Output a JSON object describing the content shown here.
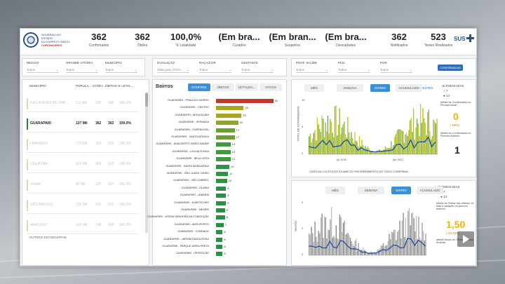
{
  "logo": {
    "line1": "GOVERNO DO ESTADO",
    "line2": "DO ESPÍRITO SANTO",
    "line3": "CORONAVÍRUS"
  },
  "kpis": [
    {
      "value": "362",
      "label": "Confirmados"
    },
    {
      "value": "362",
      "label": "Óbitos"
    },
    {
      "value": "100,0%",
      "label": "% Letalidade"
    },
    {
      "value": "(Em bra...",
      "label": "Curados"
    },
    {
      "value": "(Em bran...",
      "label": "Suspeitos"
    },
    {
      "value": "(Em bra...",
      "label": "Descartados"
    },
    {
      "value": "362",
      "label": "Notificados"
    },
    {
      "value": "523",
      "label": "Testes Realizados"
    }
  ],
  "sus_label": "SUS",
  "filters_left": [
    {
      "label": "REGIÃO",
      "value": "Todos"
    },
    {
      "label": "GRANDE VITÓRIA",
      "value": "Todos"
    },
    {
      "label": "MUNICÍPIO",
      "value": "Todos"
    }
  ],
  "filters_mid": [
    {
      "label": "EVOLUÇÃO",
      "value": "Óbito pelo COVI..."
    },
    {
      "label": "RAÇA/COR",
      "value": "Todos"
    },
    {
      "label": "GESTANTE",
      "value": "Todos"
    }
  ],
  "filters_right": [
    {
      "label": "PROF. SAÚDE",
      "value": "Todos"
    },
    {
      "label": "PCD",
      "value": "Todos"
    },
    {
      "label": "POR",
      "value": "Todos"
    }
  ],
  "confirm_btn": "CONFIRMADAS",
  "table": {
    "headers": [
      "MUNICÍPIO",
      "POPULA...",
      "CONFI...",
      "ÓBITOS",
      "% LETAL..."
    ],
    "rows": [
      {
        "name": "CACHOEIRO DE ITAP...",
        "pop": "211 Mil",
        "conf": "300",
        "obitos": "300",
        "letal": "100,0%",
        "active": false
      },
      {
        "name": "GUARAPARI",
        "pop": "127 Mil",
        "conf": "362",
        "obitos": "362",
        "letal": "100,0%",
        "active": true
      },
      {
        "name": "LINHARES",
        "pop": "177 Mil",
        "conf": "323",
        "obitos": "323",
        "letal": "100,0%",
        "active": false
      },
      {
        "name": "COLATINA",
        "pop": "123 Mil",
        "conf": "323",
        "obitos": "323",
        "letal": "100,0%",
        "active": false
      },
      {
        "name": "VIANA",
        "pop": "80 Mil",
        "conf": "237",
        "obitos": "237",
        "letal": "100,0%",
        "active": false
      },
      {
        "name": "SÃO MATEUS",
        "pop": "132 Mil",
        "conf": "221",
        "obitos": "221",
        "letal": "100,0%",
        "active": false
      },
      {
        "name": "ARACRUZ",
        "pop": "103 Mil",
        "conf": "198",
        "obitos": "198",
        "letal": "100,0%",
        "active": false
      }
    ],
    "footer": "OUTROS ESTADOS/PAÍS"
  },
  "bairros": {
    "title": "Bairros",
    "tabs": [
      "CONFIRM.",
      "ÓBITOS",
      "LETALIDA...",
      "ATIVOS"
    ],
    "items": [
      {
        "name": "GUARAPARI - PRAIA DO MORRO",
        "value": 52,
        "color": "#c0392b"
      },
      {
        "name": "GUARAPARI - CENTRO",
        "value": 25,
        "color": "#a8a81c"
      },
      {
        "name": "GUARAPARI - MUQUIÇABA",
        "value": 23,
        "color": "#a8a81c"
      },
      {
        "name": "GUARAPARI - IPIRANGA",
        "value": 20,
        "color": "#8fa52a"
      },
      {
        "name": "GUARAPARI - ITAPEBUSSU",
        "value": 17,
        "color": "#6f9f34"
      },
      {
        "name": "GUARAPARI - SANTA MÔNICA",
        "value": 17,
        "color": "#6f9f34"
      },
      {
        "name": "GUARAPARI - ADALBERTO SIMÃO NADER",
        "value": 13,
        "color": "#3f9a3f"
      },
      {
        "name": "GUARAPARI - LAGOA FUNDA",
        "value": 13,
        "color": "#3f9a3f"
      },
      {
        "name": "GUARAPARI - BELA VISTA",
        "value": 13,
        "color": "#3f9a3f"
      },
      {
        "name": "GUARAPARI - SANTA MARGARIDA",
        "value": 12,
        "color": "#2f9442"
      },
      {
        "name": "GUARAPARI - SÃO JUDAS TADEU",
        "value": 11,
        "color": "#2f9442"
      },
      {
        "name": "GUARAPARI - SÃO GABRIEL",
        "value": 10,
        "color": "#2f9442"
      },
      {
        "name": "GUARAPARI - OLARIA",
        "value": 9,
        "color": "#2b8f45"
      },
      {
        "name": "GUARAPARI - JABARAÍ",
        "value": 9,
        "color": "#2b8f45"
      },
      {
        "name": "GUARAPARI - KUBITSCHEK",
        "value": 9,
        "color": "#2b8f45"
      },
      {
        "name": "GUARAPARI - MEAÍPE",
        "value": 8,
        "color": "#2b8f45"
      },
      {
        "name": "GUARAPARI - NOSSA SENHORA DA CONCEIÇÃO",
        "value": 8,
        "color": "#2b8f45"
      },
      {
        "name": "GUARAPARI - AEROPORTO",
        "value": 7,
        "color": "#2b8f45"
      },
      {
        "name": "GUARAPARI - CORDADO",
        "value": 6,
        "color": "#2b8f45"
      },
      {
        "name": "GUARAPARI - JARDIM SANTA ROSA",
        "value": 6,
        "color": "#2b8f45"
      },
      {
        "name": "GUARAPARI - PARQUE AREIA PRETA",
        "value": 6,
        "color": "#2b8f45"
      },
      {
        "name": "GUARAPARI - PERROCÃO",
        "value": 6,
        "color": "#2b8f45"
      }
    ]
  },
  "top_chart": {
    "tabs": [
      "MÊS",
      "SEMANA",
      "DIÁRIO",
      "ACUMULADO"
    ],
    "toggle_label": "TESTES",
    "ylabel": "TOTAL DE CONFIRMADOS",
    "xlabel": "DATA DA COLETA DO EXAME OU ENCERRAMENTO DO CASO CONFIRMA...",
    "x_ticks": [
      "jul 2020",
      "jan 2021"
    ],
    "y_ticks": [
      "10",
      "5",
      "0"
    ],
    "side": {
      "title": "ÚLTIMOS DIAS",
      "opt1": "7",
      "opt2": "14",
      "mean1": "Média de Confirmados no Período Atual",
      "val1": "0",
      "pct": "(-85%)",
      "mean2": "Média de Confirmados no Período Anterior",
      "val2": "1"
    }
  },
  "bottom_chart": {
    "tabs": [
      "MÊS",
      "SEMANA",
      "DIÁRIO",
      "ACUMULADO"
    ],
    "ylabel": "ÓBITOS",
    "y_ticks": [
      "4",
      "2",
      "0"
    ],
    "side": {
      "title": "ÚLTIMOS DIAS",
      "opt1": "7",
      "opt2": "14",
      "mean1": "Média de Óbitos nos últimos 14 dias e variação no período anterior",
      "val1": "1,50",
      "pct": "(-22,22%)",
      "mean2": "Média Móvel de Óbitos Período Anterior"
    }
  }
}
